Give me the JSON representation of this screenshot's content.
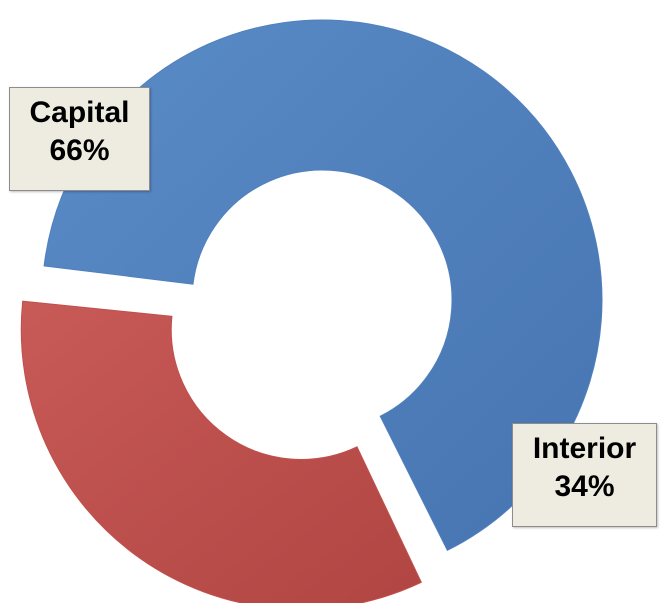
{
  "chart_data": {
    "type": "donut",
    "categories": [
      "Capital",
      "Interior"
    ],
    "values": [
      66,
      34
    ],
    "value_suffix": "%",
    "colors": [
      "#4f81bd",
      "#c0504d"
    ],
    "exploded": "Interior",
    "legend": "none",
    "labels": [
      {
        "name": "Capital",
        "value": "66%"
      },
      {
        "name": "Interior",
        "value": "34%"
      }
    ]
  }
}
